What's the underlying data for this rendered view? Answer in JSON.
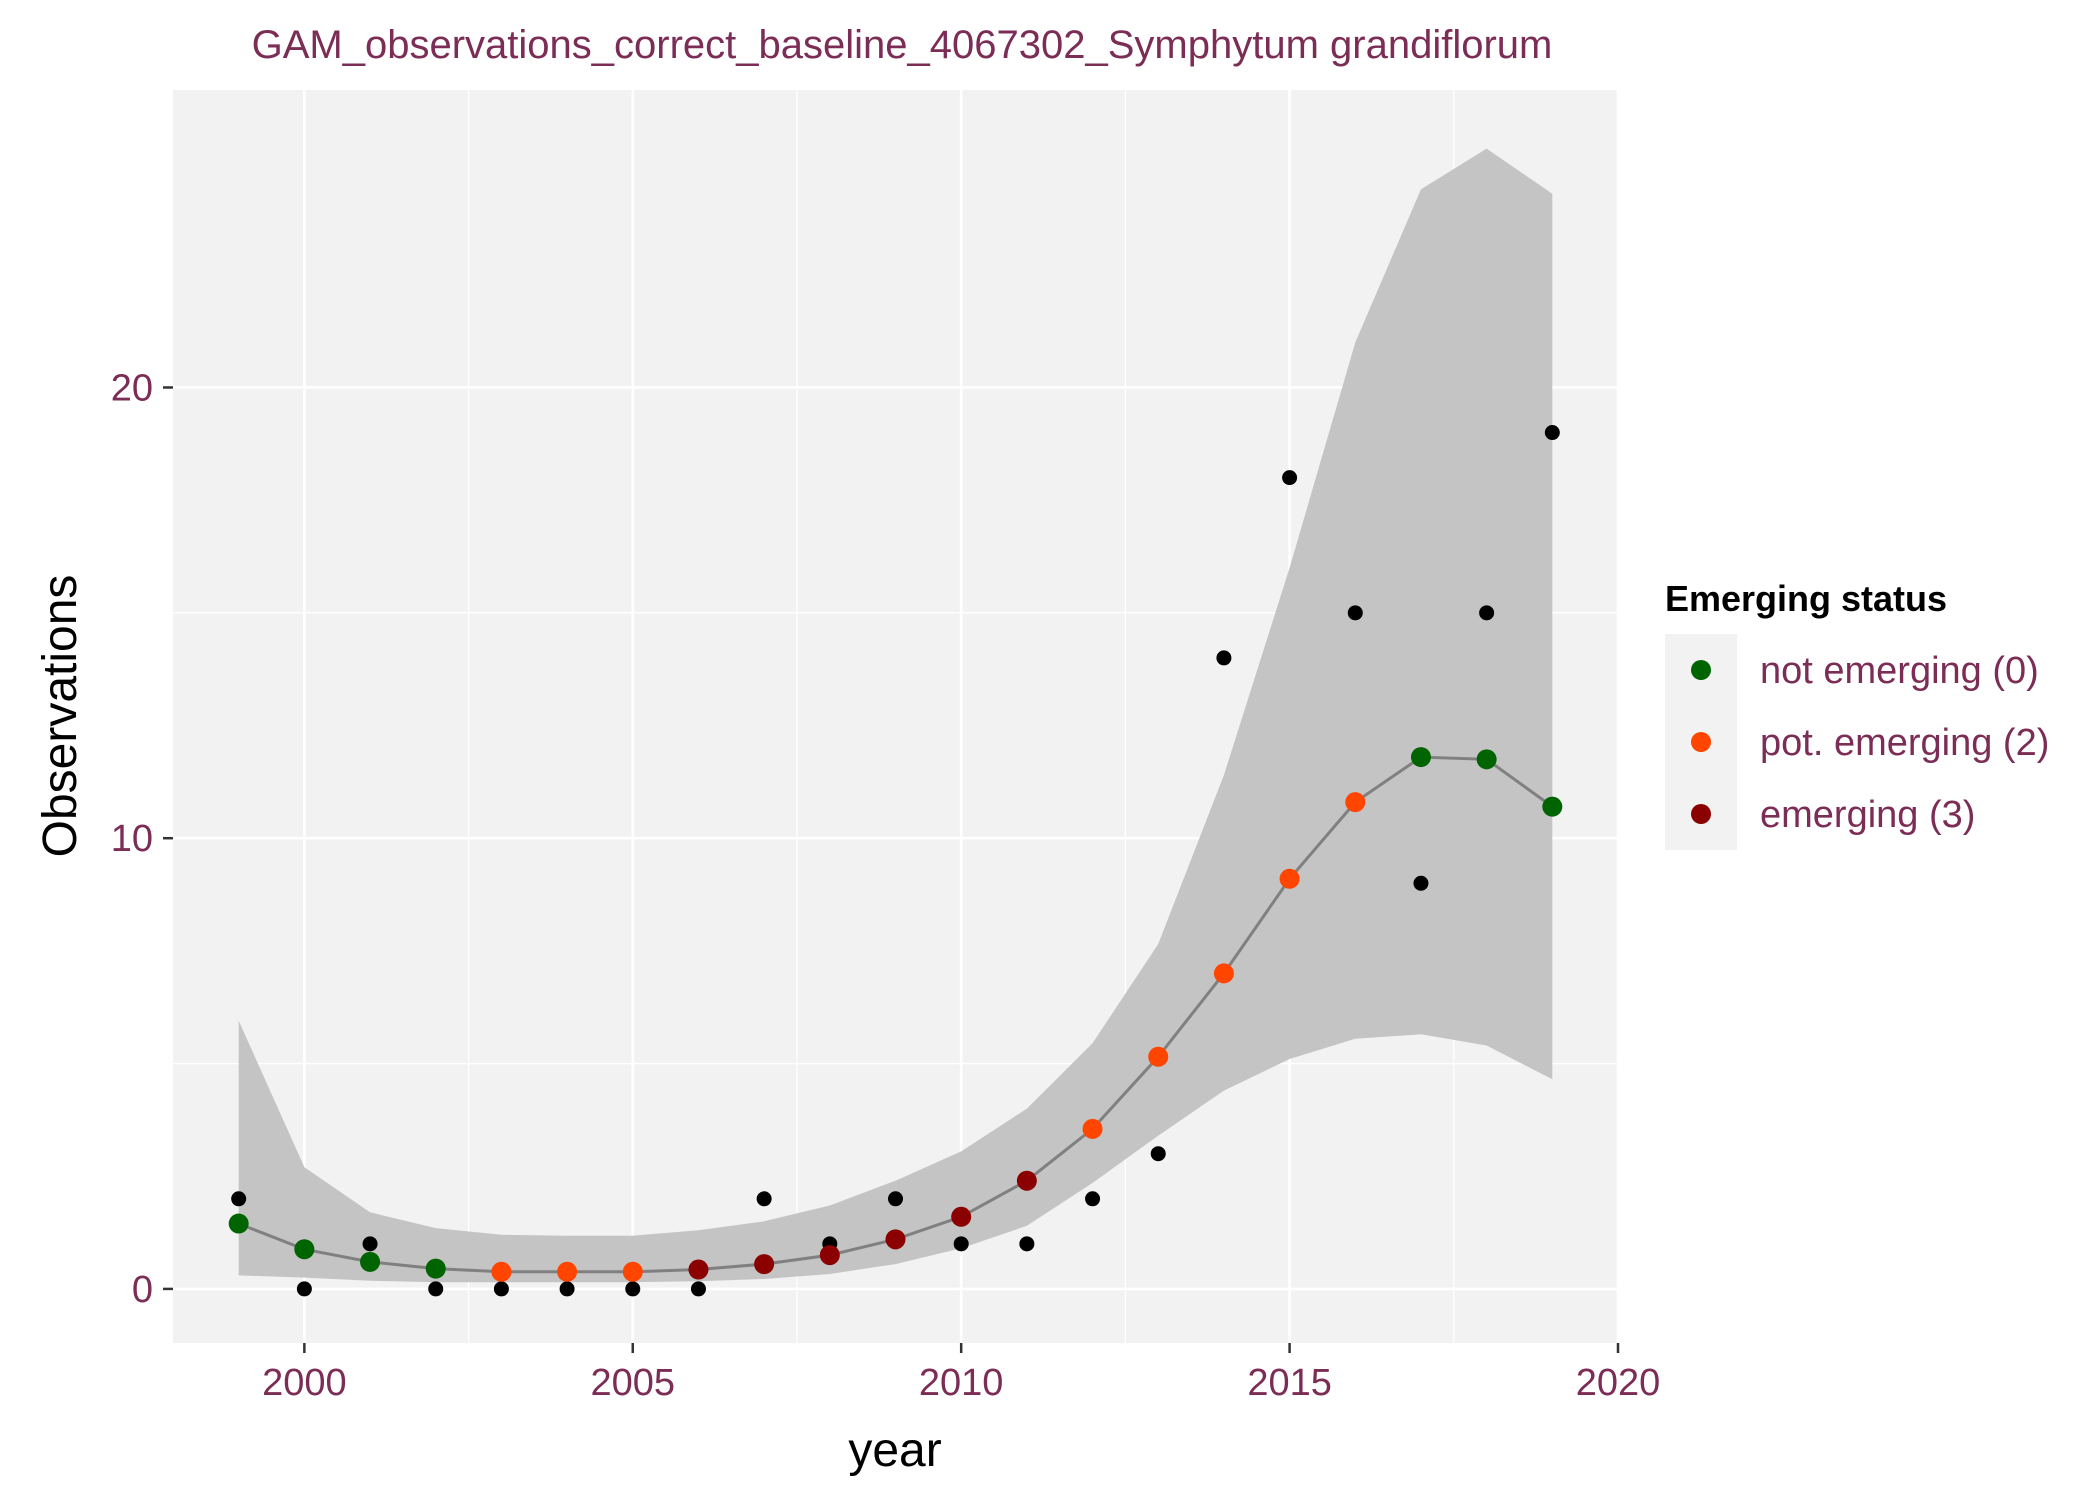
{
  "chart_data": {
    "type": "scatter",
    "title": "GAM_observations_correct_baseline_4067302_Symphytum grandiflorum",
    "xlabel": "year",
    "ylabel": "Observations",
    "xlim": [
      1998,
      2020
    ],
    "ylim": [
      -1.2,
      26.6
    ],
    "x_ticks": [
      2000,
      2005,
      2010,
      2015,
      2020
    ],
    "y_ticks": [
      0,
      10,
      20
    ],
    "grid": true,
    "panel_background": "#f2f2f2",
    "legend": {
      "title": "Emerging status",
      "position": "right",
      "entries": [
        {
          "label": "not emerging (0)",
          "status": 0,
          "color": "#006400"
        },
        {
          "label": "pot. emerging (2)",
          "status": 2,
          "color": "#ff4500"
        },
        {
          "label": "emerging (3)",
          "status": 3,
          "color": "#8b0000"
        }
      ]
    },
    "observations": {
      "name": "observed",
      "color": "#000000",
      "x": [
        1999,
        2000,
        2001,
        2002,
        2003,
        2004,
        2005,
        2006,
        2007,
        2008,
        2009,
        2010,
        2011,
        2012,
        2013,
        2014,
        2015,
        2016,
        2017,
        2018,
        2019
      ],
      "y": [
        2,
        0,
        1,
        0,
        0,
        0,
        0,
        0,
        2,
        1,
        2,
        1,
        1,
        2,
        3,
        14,
        18,
        15,
        9,
        15,
        19
      ]
    },
    "fit": {
      "line_color": "#808080",
      "ribbon_color": "#c4c4c4",
      "x": [
        1999,
        2000,
        2001,
        2002,
        2003,
        2004,
        2005,
        2006,
        2007,
        2008,
        2009,
        2010,
        2011,
        2012,
        2013,
        2014,
        2015,
        2016,
        2017,
        2018,
        2019
      ],
      "y": [
        1.45,
        0.88,
        0.6,
        0.45,
        0.38,
        0.38,
        0.38,
        0.43,
        0.55,
        0.75,
        1.1,
        1.6,
        2.4,
        3.55,
        5.15,
        7.0,
        9.1,
        10.8,
        11.8,
        11.75,
        10.7
      ],
      "lower": [
        0.3,
        0.25,
        0.18,
        0.15,
        0.15,
        0.15,
        0.15,
        0.17,
        0.22,
        0.33,
        0.55,
        0.9,
        1.4,
        2.35,
        3.4,
        4.4,
        5.1,
        5.55,
        5.65,
        5.4,
        4.65
      ],
      "upper": [
        5.95,
        2.7,
        1.7,
        1.35,
        1.2,
        1.18,
        1.18,
        1.3,
        1.5,
        1.85,
        2.4,
        3.05,
        4.0,
        5.45,
        7.65,
        11.4,
        16.0,
        21.0,
        24.4,
        25.3,
        24.3
      ],
      "status": [
        0,
        0,
        0,
        0,
        2,
        2,
        2,
        3,
        3,
        3,
        3,
        3,
        3,
        2,
        2,
        2,
        2,
        2,
        0,
        0,
        0
      ]
    }
  }
}
